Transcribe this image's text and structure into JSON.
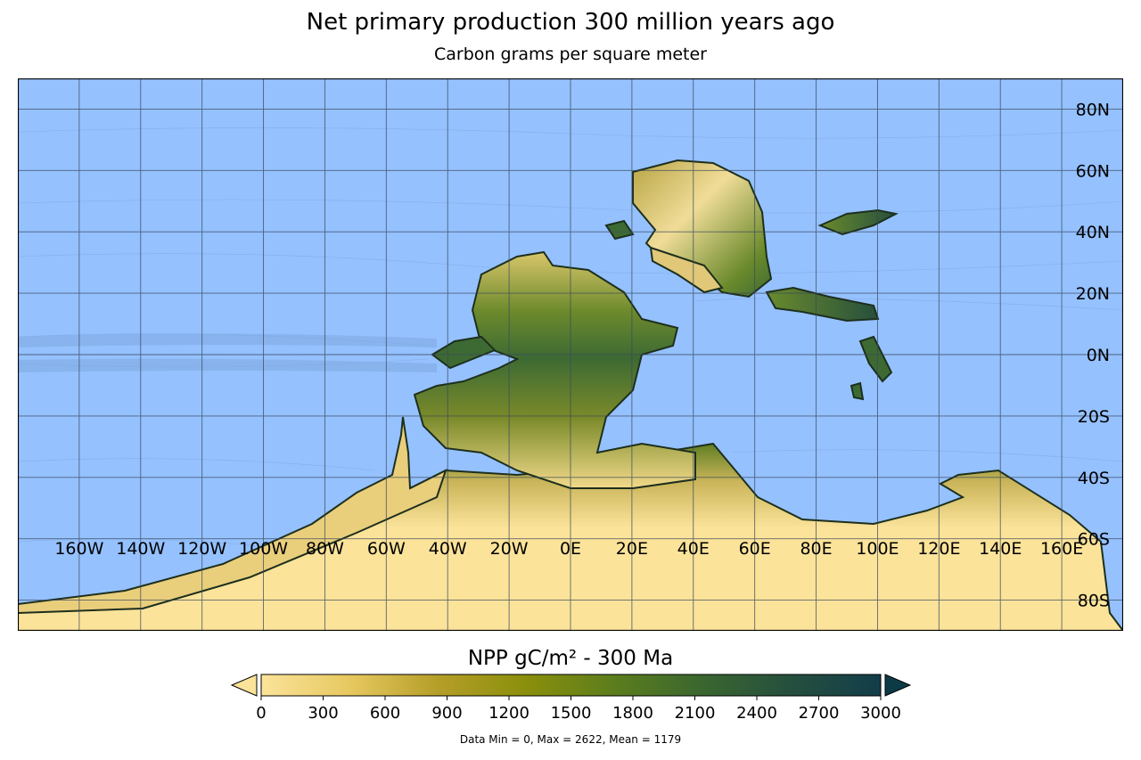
{
  "title": "Net primary production 300 million years ago",
  "subtitle": "Carbon grams per square meter",
  "colorbar": {
    "title": "NPP gC/m² - 300 Ma",
    "ticks": [
      "0",
      "300",
      "600",
      "900",
      "1200",
      "1500",
      "1800",
      "2100",
      "2400",
      "2700",
      "3000"
    ],
    "range": [
      0,
      3000
    ],
    "colors": [
      "#fbe39a",
      "#e7c860",
      "#b59e28",
      "#8a8f0b",
      "#5b7d1d",
      "#3a6630",
      "#254f3e",
      "#123d4a"
    ]
  },
  "stats": "Data Min = 0, Max = 2622, Mean = 1179",
  "map": {
    "ocean_color": "#95c1ff",
    "lon_labels": [
      "160W",
      "140W",
      "120W",
      "100W",
      "80W",
      "60W",
      "40W",
      "20W",
      "0E",
      "20E",
      "40E",
      "60E",
      "80E",
      "100E",
      "120E",
      "140E",
      "160E"
    ],
    "lat_labels": [
      "80N",
      "60N",
      "40N",
      "20N",
      "0N",
      "20S",
      "40S",
      "60S",
      "80S"
    ]
  }
}
